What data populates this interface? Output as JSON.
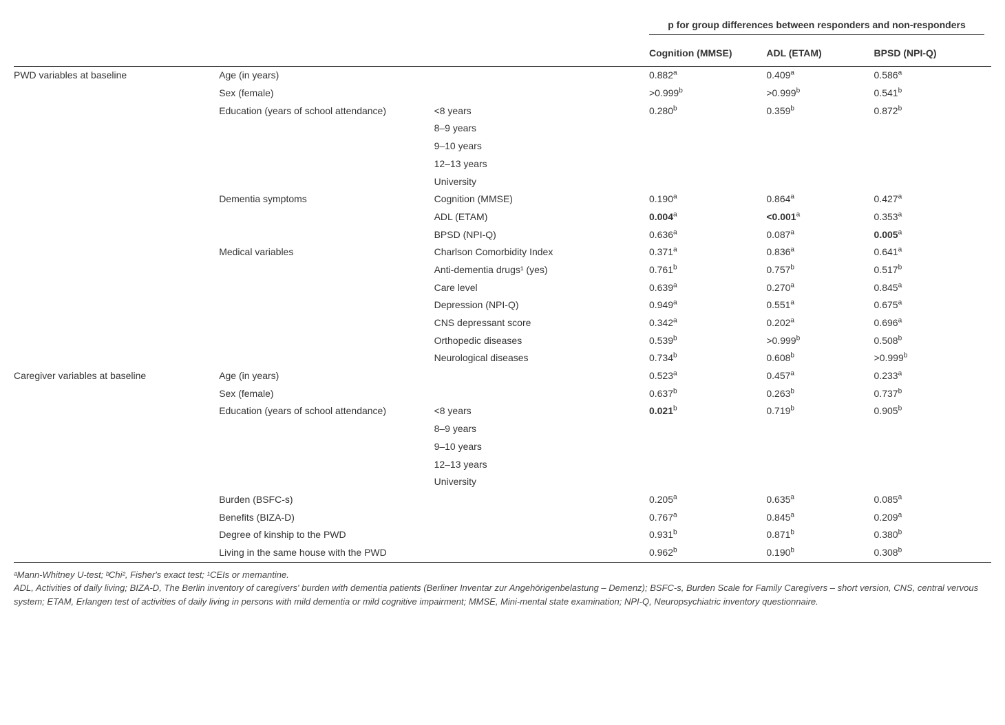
{
  "header": {
    "spanner": "p for group differences between responders and non-responders",
    "cols": [
      "Cognition (MMSE)",
      "ADL (ETAM)",
      "BPSD (NPI-Q)"
    ]
  },
  "sections": [
    {
      "label": "PWD variables at baseline",
      "rows": [
        {
          "var": "Age (in years)",
          "sub": "",
          "cells": [
            {
              "v": "0.882",
              "s": "a"
            },
            {
              "v": "0.409",
              "s": "a"
            },
            {
              "v": "0.586",
              "s": "a"
            }
          ]
        },
        {
          "var": "Sex (female)",
          "sub": "",
          "cells": [
            {
              "v": ">0.999",
              "s": "b"
            },
            {
              "v": ">0.999",
              "s": "b"
            },
            {
              "v": "0.541",
              "s": "b"
            }
          ]
        },
        {
          "var": "Education (years of school attendance)",
          "sub": "<8 years",
          "cells": [
            {
              "v": "0.280",
              "s": "b"
            },
            {
              "v": "0.359",
              "s": "b"
            },
            {
              "v": "0.872",
              "s": "b"
            }
          ]
        },
        {
          "var": "",
          "sub": "8–9 years",
          "cells": []
        },
        {
          "var": "",
          "sub": "9–10 years",
          "cells": []
        },
        {
          "var": "",
          "sub": "12–13 years",
          "cells": []
        },
        {
          "var": "",
          "sub": "University",
          "cells": []
        },
        {
          "var": "Dementia symptoms",
          "sub": "Cognition (MMSE)",
          "cells": [
            {
              "v": "0.190",
              "s": "a"
            },
            {
              "v": "0.864",
              "s": "a"
            },
            {
              "v": "0.427",
              "s": "a"
            }
          ]
        },
        {
          "var": "",
          "sub": "ADL (ETAM)",
          "cells": [
            {
              "v": "0.004",
              "s": "a",
              "b": true
            },
            {
              "v": "<0.001",
              "s": "a",
              "b": true
            },
            {
              "v": "0.353",
              "s": "a"
            }
          ]
        },
        {
          "var": "",
          "sub": "BPSD (NPI-Q)",
          "cells": [
            {
              "v": "0.636",
              "s": "a"
            },
            {
              "v": "0.087",
              "s": "a"
            },
            {
              "v": "0.005",
              "s": "a",
              "b": true
            }
          ]
        },
        {
          "var": "Medical variables",
          "sub": "Charlson Comorbidity Index",
          "cells": [
            {
              "v": "0.371",
              "s": "a"
            },
            {
              "v": "0.836",
              "s": "a"
            },
            {
              "v": "0.641",
              "s": "a"
            }
          ]
        },
        {
          "var": "",
          "sub": "Anti-dementia drugs¹ (yes)",
          "cells": [
            {
              "v": "0.761",
              "s": "b"
            },
            {
              "v": "0.757",
              "s": "b"
            },
            {
              "v": "0.517",
              "s": "b"
            }
          ]
        },
        {
          "var": "",
          "sub": "Care level",
          "cells": [
            {
              "v": "0.639",
              "s": "a"
            },
            {
              "v": "0.270",
              "s": "a"
            },
            {
              "v": "0.845",
              "s": "a"
            }
          ]
        },
        {
          "var": "",
          "sub": "Depression (NPI-Q)",
          "cells": [
            {
              "v": "0.949",
              "s": "a"
            },
            {
              "v": "0.551",
              "s": "a"
            },
            {
              "v": "0.675",
              "s": "a"
            }
          ]
        },
        {
          "var": "",
          "sub": "CNS depressant score",
          "cells": [
            {
              "v": "0.342",
              "s": "a"
            },
            {
              "v": "0.202",
              "s": "a"
            },
            {
              "v": "0.696",
              "s": "a"
            }
          ]
        },
        {
          "var": "",
          "sub": "Orthopedic diseases",
          "cells": [
            {
              "v": "0.539",
              "s": "b"
            },
            {
              "v": ">0.999",
              "s": "b"
            },
            {
              "v": "0.508",
              "s": "b"
            }
          ]
        },
        {
          "var": "",
          "sub": "Neurological diseases",
          "cells": [
            {
              "v": "0.734",
              "s": "b"
            },
            {
              "v": "0.608",
              "s": "b"
            },
            {
              "v": ">0.999",
              "s": "b"
            }
          ]
        }
      ]
    },
    {
      "label": "Caregiver variables at baseline",
      "rows": [
        {
          "var": "Age (in years)",
          "sub": "",
          "cells": [
            {
              "v": "0.523",
              "s": "a"
            },
            {
              "v": "0.457",
              "s": "a"
            },
            {
              "v": "0.233",
              "s": "a"
            }
          ]
        },
        {
          "var": "Sex (female)",
          "sub": "",
          "cells": [
            {
              "v": "0.637",
              "s": "b"
            },
            {
              "v": "0.263",
              "s": "b"
            },
            {
              "v": "0.737",
              "s": "b"
            }
          ]
        },
        {
          "var": "Education (years of school attendance)",
          "sub": "<8 years",
          "cells": [
            {
              "v": "0.021",
              "s": "b",
              "b": true
            },
            {
              "v": "0.719",
              "s": "b"
            },
            {
              "v": "0.905",
              "s": "b"
            }
          ]
        },
        {
          "var": "",
          "sub": "8–9 years",
          "cells": []
        },
        {
          "var": "",
          "sub": "9–10 years",
          "cells": []
        },
        {
          "var": "",
          "sub": "12–13 years",
          "cells": []
        },
        {
          "var": "",
          "sub": "University",
          "cells": []
        },
        {
          "var": "Burden (BSFC-s)",
          "sub": "",
          "cells": [
            {
              "v": "0.205",
              "s": "a"
            },
            {
              "v": "0.635",
              "s": "a"
            },
            {
              "v": "0.085",
              "s": "a"
            }
          ]
        },
        {
          "var": "Benefits (BIZA-D)",
          "sub": "",
          "cells": [
            {
              "v": "0.767",
              "s": "a"
            },
            {
              "v": "0.845",
              "s": "a"
            },
            {
              "v": "0.209",
              "s": "a"
            }
          ]
        },
        {
          "var": "Degree of kinship to the PWD",
          "sub": "",
          "cells": [
            {
              "v": "0.931",
              "s": "b"
            },
            {
              "v": "0.871",
              "s": "b"
            },
            {
              "v": "0.380",
              "s": "b"
            }
          ]
        },
        {
          "var": "Living in the same house with the PWD",
          "sub": "",
          "cells": [
            {
              "v": "0.962",
              "s": "b"
            },
            {
              "v": "0.190",
              "s": "b"
            },
            {
              "v": "0.308",
              "s": "b"
            }
          ]
        }
      ]
    }
  ],
  "footnotes": [
    "ᵃMann-Whitney U-test; ᵇChi², Fisher's exact test; ¹CEIs or memantine.",
    "ADL, Activities of daily living; BIZA-D, The Berlin inventory of caregivers' burden with dementia patients (Berliner Inventar zur Angehörigenbelastung – Demenz); BSFC-s, Burden Scale for Family Caregivers – short version, CNS, central vervous system; ETAM, Erlangen test of activities of daily living in persons with mild dementia or mild cognitive impairment; MMSE, Mini-mental state examination; NPI-Q, Neuropsychiatric inventory questionnaire."
  ]
}
